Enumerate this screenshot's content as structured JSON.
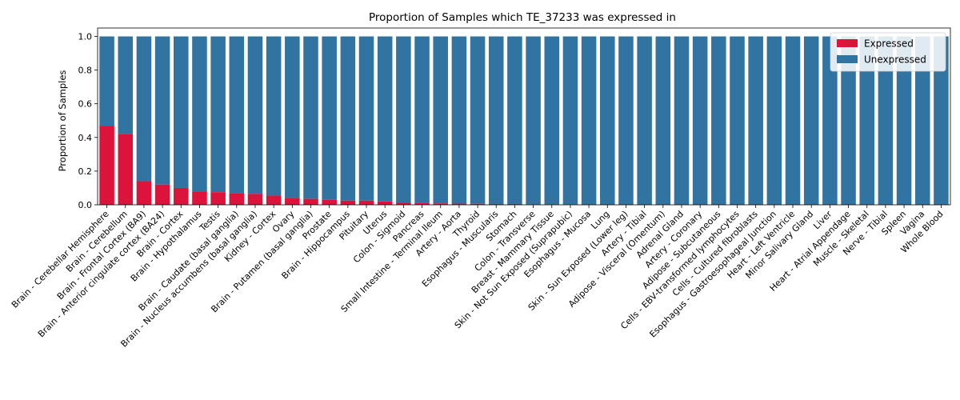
{
  "chart_data": {
    "type": "bar",
    "stacked": true,
    "title": "Proportion of Samples which TE_37233 was expressed in",
    "xlabel": "",
    "ylabel": "Proportion of Samples",
    "ylim": [
      0,
      1.05
    ],
    "yticks": [
      "0.0",
      "0.2",
      "0.4",
      "0.6",
      "0.8",
      "1.0"
    ],
    "legend_position": "top-right",
    "categories": [
      "Brain - Cerebellar Hemisphere",
      "Brain - Cerebellum",
      "Brain - Frontal Cortex (BA9)",
      "Brain - Anterior cingulate cortex (BA24)",
      "Brain - Cortex",
      "Brain - Hypothalamus",
      "Testis",
      "Brain - Caudate (basal ganglia)",
      "Brain - Nucleus accumbens (basal ganglia)",
      "Kidney - Cortex",
      "Ovary",
      "Brain - Putamen (basal ganglia)",
      "Prostate",
      "Brain - Hippocampus",
      "Pituitary",
      "Uterus",
      "Colon - Sigmoid",
      "Pancreas",
      "Small Intestine - Terminal Ileum",
      "Artery - Aorta",
      "Thyroid",
      "Esophagus - Muscularis",
      "Stomach",
      "Colon - Transverse",
      "Breast - Mammary Tissue",
      "Skin - Not Sun Exposed (Suprapubic)",
      "Esophagus - Mucosa",
      "Lung",
      "Skin - Sun Exposed (Lower leg)",
      "Artery - Tibial",
      "Adipose - Visceral (Omentum)",
      "Adrenal Gland",
      "Artery - Coronary",
      "Adipose - Subcutaneous",
      "Cells - EBV-transformed lymphocytes",
      "Cells - Cultured fibroblasts",
      "Esophagus - Gastroesophageal Junction",
      "Heart - Left Ventricle",
      "Minor Salivary Gland",
      "Liver",
      "Heart - Atrial Appendage",
      "Muscle - Skeletal",
      "Nerve - Tibial",
      "Spleen",
      "Vagina",
      "Whole Blood"
    ],
    "series": [
      {
        "name": "Expressed",
        "color": "#dc143c",
        "values": [
          0.47,
          0.42,
          0.14,
          0.12,
          0.1,
          0.08,
          0.075,
          0.07,
          0.065,
          0.055,
          0.04,
          0.035,
          0.03,
          0.025,
          0.025,
          0.02,
          0.012,
          0.01,
          0.008,
          0.007,
          0.006,
          0.005,
          0.005,
          0.004,
          0.004,
          0.003,
          0,
          0,
          0,
          0,
          0,
          0,
          0,
          0,
          0,
          0,
          0,
          0,
          0,
          0,
          0,
          0,
          0,
          0,
          0,
          0
        ]
      },
      {
        "name": "Unexpressed",
        "color": "#3274a1",
        "values": [
          0.53,
          0.58,
          0.86,
          0.88,
          0.9,
          0.92,
          0.925,
          0.93,
          0.935,
          0.945,
          0.96,
          0.965,
          0.97,
          0.975,
          0.975,
          0.98,
          0.988,
          0.99,
          0.992,
          0.993,
          0.994,
          0.995,
          0.995,
          0.996,
          0.996,
          0.997,
          1,
          1,
          1,
          1,
          1,
          1,
          1,
          1,
          1,
          1,
          1,
          1,
          1,
          1,
          1,
          1,
          1,
          1,
          1,
          1
        ]
      }
    ]
  }
}
